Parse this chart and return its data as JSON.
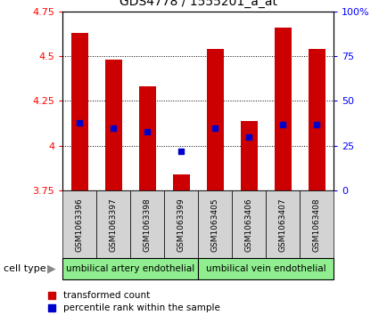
{
  "title": "GDS4778 / 1555201_a_at",
  "samples": [
    "GSM1063396",
    "GSM1063397",
    "GSM1063398",
    "GSM1063399",
    "GSM1063405",
    "GSM1063406",
    "GSM1063407",
    "GSM1063408"
  ],
  "red_values": [
    4.63,
    4.48,
    4.33,
    3.84,
    4.54,
    4.14,
    4.66,
    4.54
  ],
  "blue_values": [
    4.13,
    4.1,
    4.08,
    3.97,
    4.1,
    4.05,
    4.12,
    4.12
  ],
  "ylim": [
    3.75,
    4.75
  ],
  "yticks_left": [
    3.75,
    4.0,
    4.25,
    4.5,
    4.75
  ],
  "ytick_labels_left": [
    "3.75",
    "4",
    "4.25",
    "4.5",
    "4.75"
  ],
  "yticks_right": [
    0,
    25,
    50,
    75,
    100
  ],
  "ytick_labels_right": [
    "0",
    "25",
    "50",
    "75",
    "100%"
  ],
  "bar_bottom": 3.75,
  "bar_color": "#cc0000",
  "dot_color": "#0000cc",
  "group1_label": "umbilical artery endothelial",
  "group2_label": "umbilical vein endothelial",
  "group1_samples": [
    0,
    1,
    2,
    3
  ],
  "group2_samples": [
    4,
    5,
    6,
    7
  ],
  "cell_type_label": "cell type",
  "legend1": "transformed count",
  "legend2": "percentile rank within the sample",
  "group_bg_color": "#90EE90",
  "sample_bg_color": "#d3d3d3",
  "bar_width": 0.5,
  "fig_width": 4.25,
  "fig_height": 3.63,
  "dpi": 100
}
